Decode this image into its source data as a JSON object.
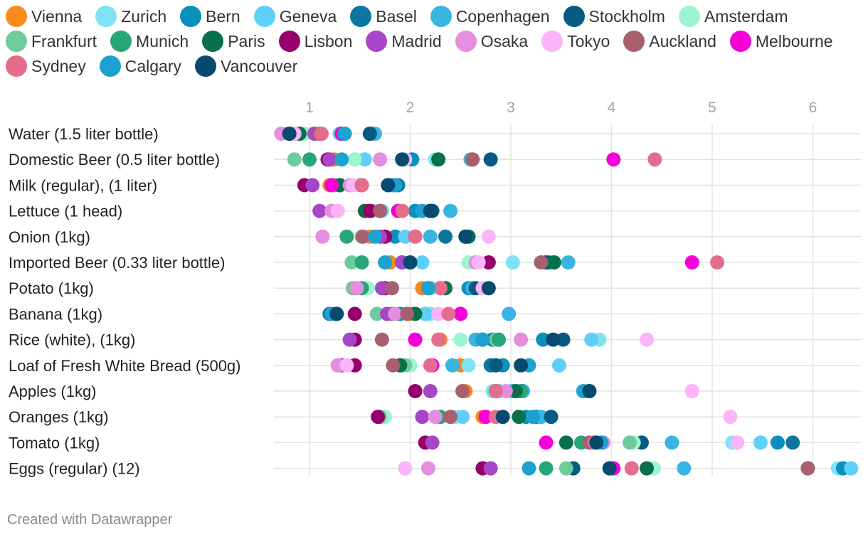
{
  "footer": "Created with Datawrapper",
  "legend": [
    {
      "name": "Vienna",
      "color": "#f58a1f"
    },
    {
      "name": "Zurich",
      "color": "#7fe3f3"
    },
    {
      "name": "Bern",
      "color": "#0a90bb"
    },
    {
      "name": "Geneva",
      "color": "#5ed0f7"
    },
    {
      "name": "Basel",
      "color": "#0c76a0"
    },
    {
      "name": "Copenhagen",
      "color": "#3ab4e2"
    },
    {
      "name": "Stockholm",
      "color": "#075a80"
    },
    {
      "name": "Amsterdam",
      "color": "#9cf5cf"
    },
    {
      "name": "Frankfurt",
      "color": "#6ecb9b"
    },
    {
      "name": "Munich",
      "color": "#27a676"
    },
    {
      "name": "Paris",
      "color": "#08704a"
    },
    {
      "name": "Lisbon",
      "color": "#95006b"
    },
    {
      "name": "Madrid",
      "color": "#a746c6"
    },
    {
      "name": "Osaka",
      "color": "#e58ddf"
    },
    {
      "name": "Tokyo",
      "color": "#fbb4f7"
    },
    {
      "name": "Auckland",
      "color": "#a8606f"
    },
    {
      "name": "Melbourne",
      "color": "#f500d8"
    },
    {
      "name": "Sydney",
      "color": "#e46d8e"
    },
    {
      "name": "Calgary",
      "color": "#1ca2d0"
    },
    {
      "name": "Vancouver",
      "color": "#064a6f"
    }
  ],
  "chart_data": {
    "type": "scatter",
    "subtype": "dot-plot",
    "xlim": [
      0.65,
      6.45
    ],
    "xticks": [
      1,
      2,
      3,
      4,
      5,
      6
    ],
    "grid": true,
    "legend_position": "top",
    "cities": [
      "Vienna",
      "Zurich",
      "Bern",
      "Geneva",
      "Basel",
      "Copenhagen",
      "Stockholm",
      "Amsterdam",
      "Frankfurt",
      "Munich",
      "Paris",
      "Lisbon",
      "Madrid",
      "Osaka",
      "Tokyo",
      "Auckland",
      "Melbourne",
      "Sydney",
      "Calgary",
      "Vancouver"
    ],
    "rows": [
      {
        "label": "Water (1.5 liter bottle)",
        "values": [
          1.05,
          0.95,
          1.35,
          1.3,
          1.6,
          1.65,
          1.6,
          0.95,
          0.85,
          0.9,
          0.9,
          0.8,
          1.05,
          0.72,
          0.85,
          1.1,
          1.32,
          1.12,
          1.35,
          0.8
        ]
      },
      {
        "label": "Domestic Beer (0.5 liter bottle)",
        "values": [
          1.25,
          2.25,
          2.02,
          1.55,
          1.2,
          2.6,
          2.8,
          1.45,
          0.85,
          1.0,
          2.28,
          1.18,
          1.2,
          1.7,
          1.95,
          2.62,
          4.02,
          4.43,
          1.32,
          1.92
        ]
      },
      {
        "label": "Milk (regular), (1 liter)",
        "values": [
          1.2,
          1.4,
          1.82,
          1.5,
          1.88,
          1.85,
          1.78,
          1.3,
          1.25,
          1.3,
          1.3,
          0.95,
          1.03,
          1.4,
          1.43,
          1.52,
          1.22,
          1.52,
          1.85,
          1.78
        ]
      },
      {
        "label": "Lettuce (1 head)",
        "values": [
          1.55,
          1.7,
          2.05,
          1.72,
          2.2,
          2.4,
          2.22,
          1.62,
          1.62,
          1.6,
          1.55,
          1.6,
          1.1,
          1.22,
          1.28,
          1.7,
          1.88,
          1.92,
          2.12,
          2.2
        ]
      },
      {
        "label": "Onion (1kg)",
        "values": [
          1.6,
          1.75,
          1.85,
          1.95,
          2.35,
          2.2,
          2.55,
          1.72,
          1.52,
          1.37,
          2.58,
          1.75,
          1.7,
          1.13,
          2.78,
          1.53,
          2.05,
          2.05,
          1.65,
          2.55
        ]
      },
      {
        "label": "Imported Beer (0.33 liter bottle)",
        "values": [
          1.8,
          3.02,
          3.38,
          2.12,
          1.92,
          3.57,
          3.35,
          2.58,
          1.42,
          1.52,
          3.43,
          2.78,
          1.92,
          2.65,
          2.68,
          3.3,
          4.8,
          5.05,
          1.75,
          2.0
        ]
      },
      {
        "label": "Potato (1kg)",
        "values": [
          2.12,
          2.72,
          2.58,
          2.2,
          2.18,
          2.62,
          2.65,
          1.58,
          1.43,
          1.52,
          2.35,
          1.75,
          1.72,
          1.47,
          2.72,
          1.82,
          2.3,
          2.3,
          2.18,
          2.78
        ]
      },
      {
        "label": "Banana (1kg)",
        "values": [
          2.0,
          2.2,
          1.9,
          2.15,
          1.2,
          2.98,
          1.27,
          2.05,
          1.67,
          1.82,
          2.05,
          1.45,
          1.77,
          1.85,
          2.28,
          1.97,
          2.5,
          2.38,
          1.22,
          1.27
        ]
      },
      {
        "label": "Rice (white), (1kg)",
        "values": [
          2.3,
          3.88,
          3.32,
          3.8,
          2.82,
          2.65,
          3.52,
          2.5,
          2.85,
          2.88,
          2.72,
          1.45,
          1.4,
          3.1,
          4.35,
          1.72,
          2.05,
          2.28,
          2.72,
          3.42
        ]
      },
      {
        "label": "Loaf of Fresh White Bread (500g)",
        "values": [
          2.5,
          2.58,
          2.92,
          3.48,
          2.8,
          2.42,
          2.85,
          2.0,
          1.95,
          1.9,
          1.9,
          1.45,
          1.32,
          1.28,
          1.37,
          1.83,
          2.22,
          2.2,
          3.18,
          3.1
        ]
      },
      {
        "label": "Apples (1kg)",
        "values": [
          2.55,
          2.82,
          3.02,
          3.0,
          3.12,
          3.12,
          3.78,
          2.85,
          2.88,
          3.1,
          3.05,
          2.05,
          2.2,
          2.95,
          4.8,
          2.52,
          2.85,
          2.85,
          3.72,
          3.78
        ]
      },
      {
        "label": "Oranges (1kg)",
        "values": [
          2.72,
          2.45,
          3.15,
          2.52,
          3.25,
          3.3,
          3.4,
          1.75,
          1.7,
          2.3,
          3.08,
          1.68,
          2.12,
          2.25,
          5.18,
          2.4,
          2.75,
          2.85,
          3.22,
          2.92
        ]
      },
      {
        "label": "Tomato (1kg)",
        "values": [
          3.82,
          5.2,
          5.65,
          5.48,
          5.8,
          4.6,
          4.3,
          4.22,
          4.18,
          3.7,
          3.55,
          2.15,
          2.22,
          3.92,
          5.25,
          3.78,
          3.35,
          3.83,
          3.9,
          3.85
        ]
      },
      {
        "label": "Eggs (regular) (12)",
        "values": [
          4.0,
          6.25,
          6.3,
          6.38,
          5.95,
          4.72,
          3.62,
          4.42,
          3.55,
          3.35,
          4.35,
          2.72,
          2.8,
          2.18,
          1.95,
          5.95,
          4.02,
          4.2,
          3.18,
          3.98
        ]
      }
    ]
  }
}
